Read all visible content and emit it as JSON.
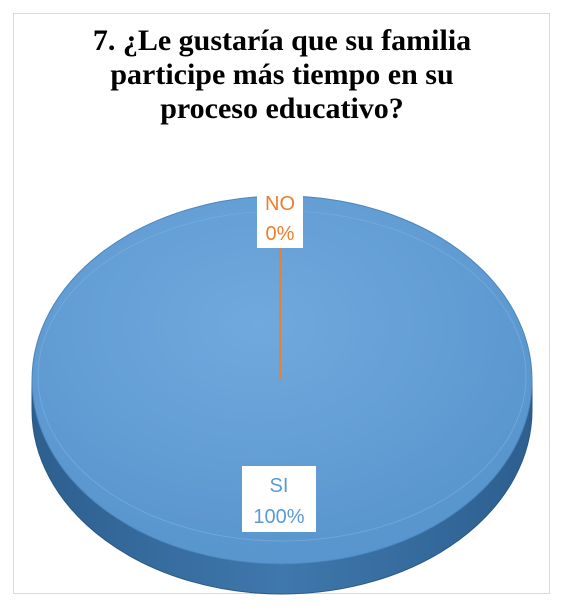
{
  "chart_data": {
    "type": "pie",
    "style": "3d",
    "title_lines": [
      "7. ¿Le gustaría que su familia",
      "participe más tiempo en su",
      "proceso educativo?"
    ],
    "categories": [
      "SI",
      "NO"
    ],
    "values": [
      100,
      0
    ],
    "labels": [
      {
        "category": "SI",
        "percent": "100%"
      },
      {
        "category": "NO",
        "percent": "0%"
      }
    ],
    "colors": {
      "SI": "#5b9bd5",
      "NO": "#ed7d31"
    },
    "legend": "none"
  }
}
